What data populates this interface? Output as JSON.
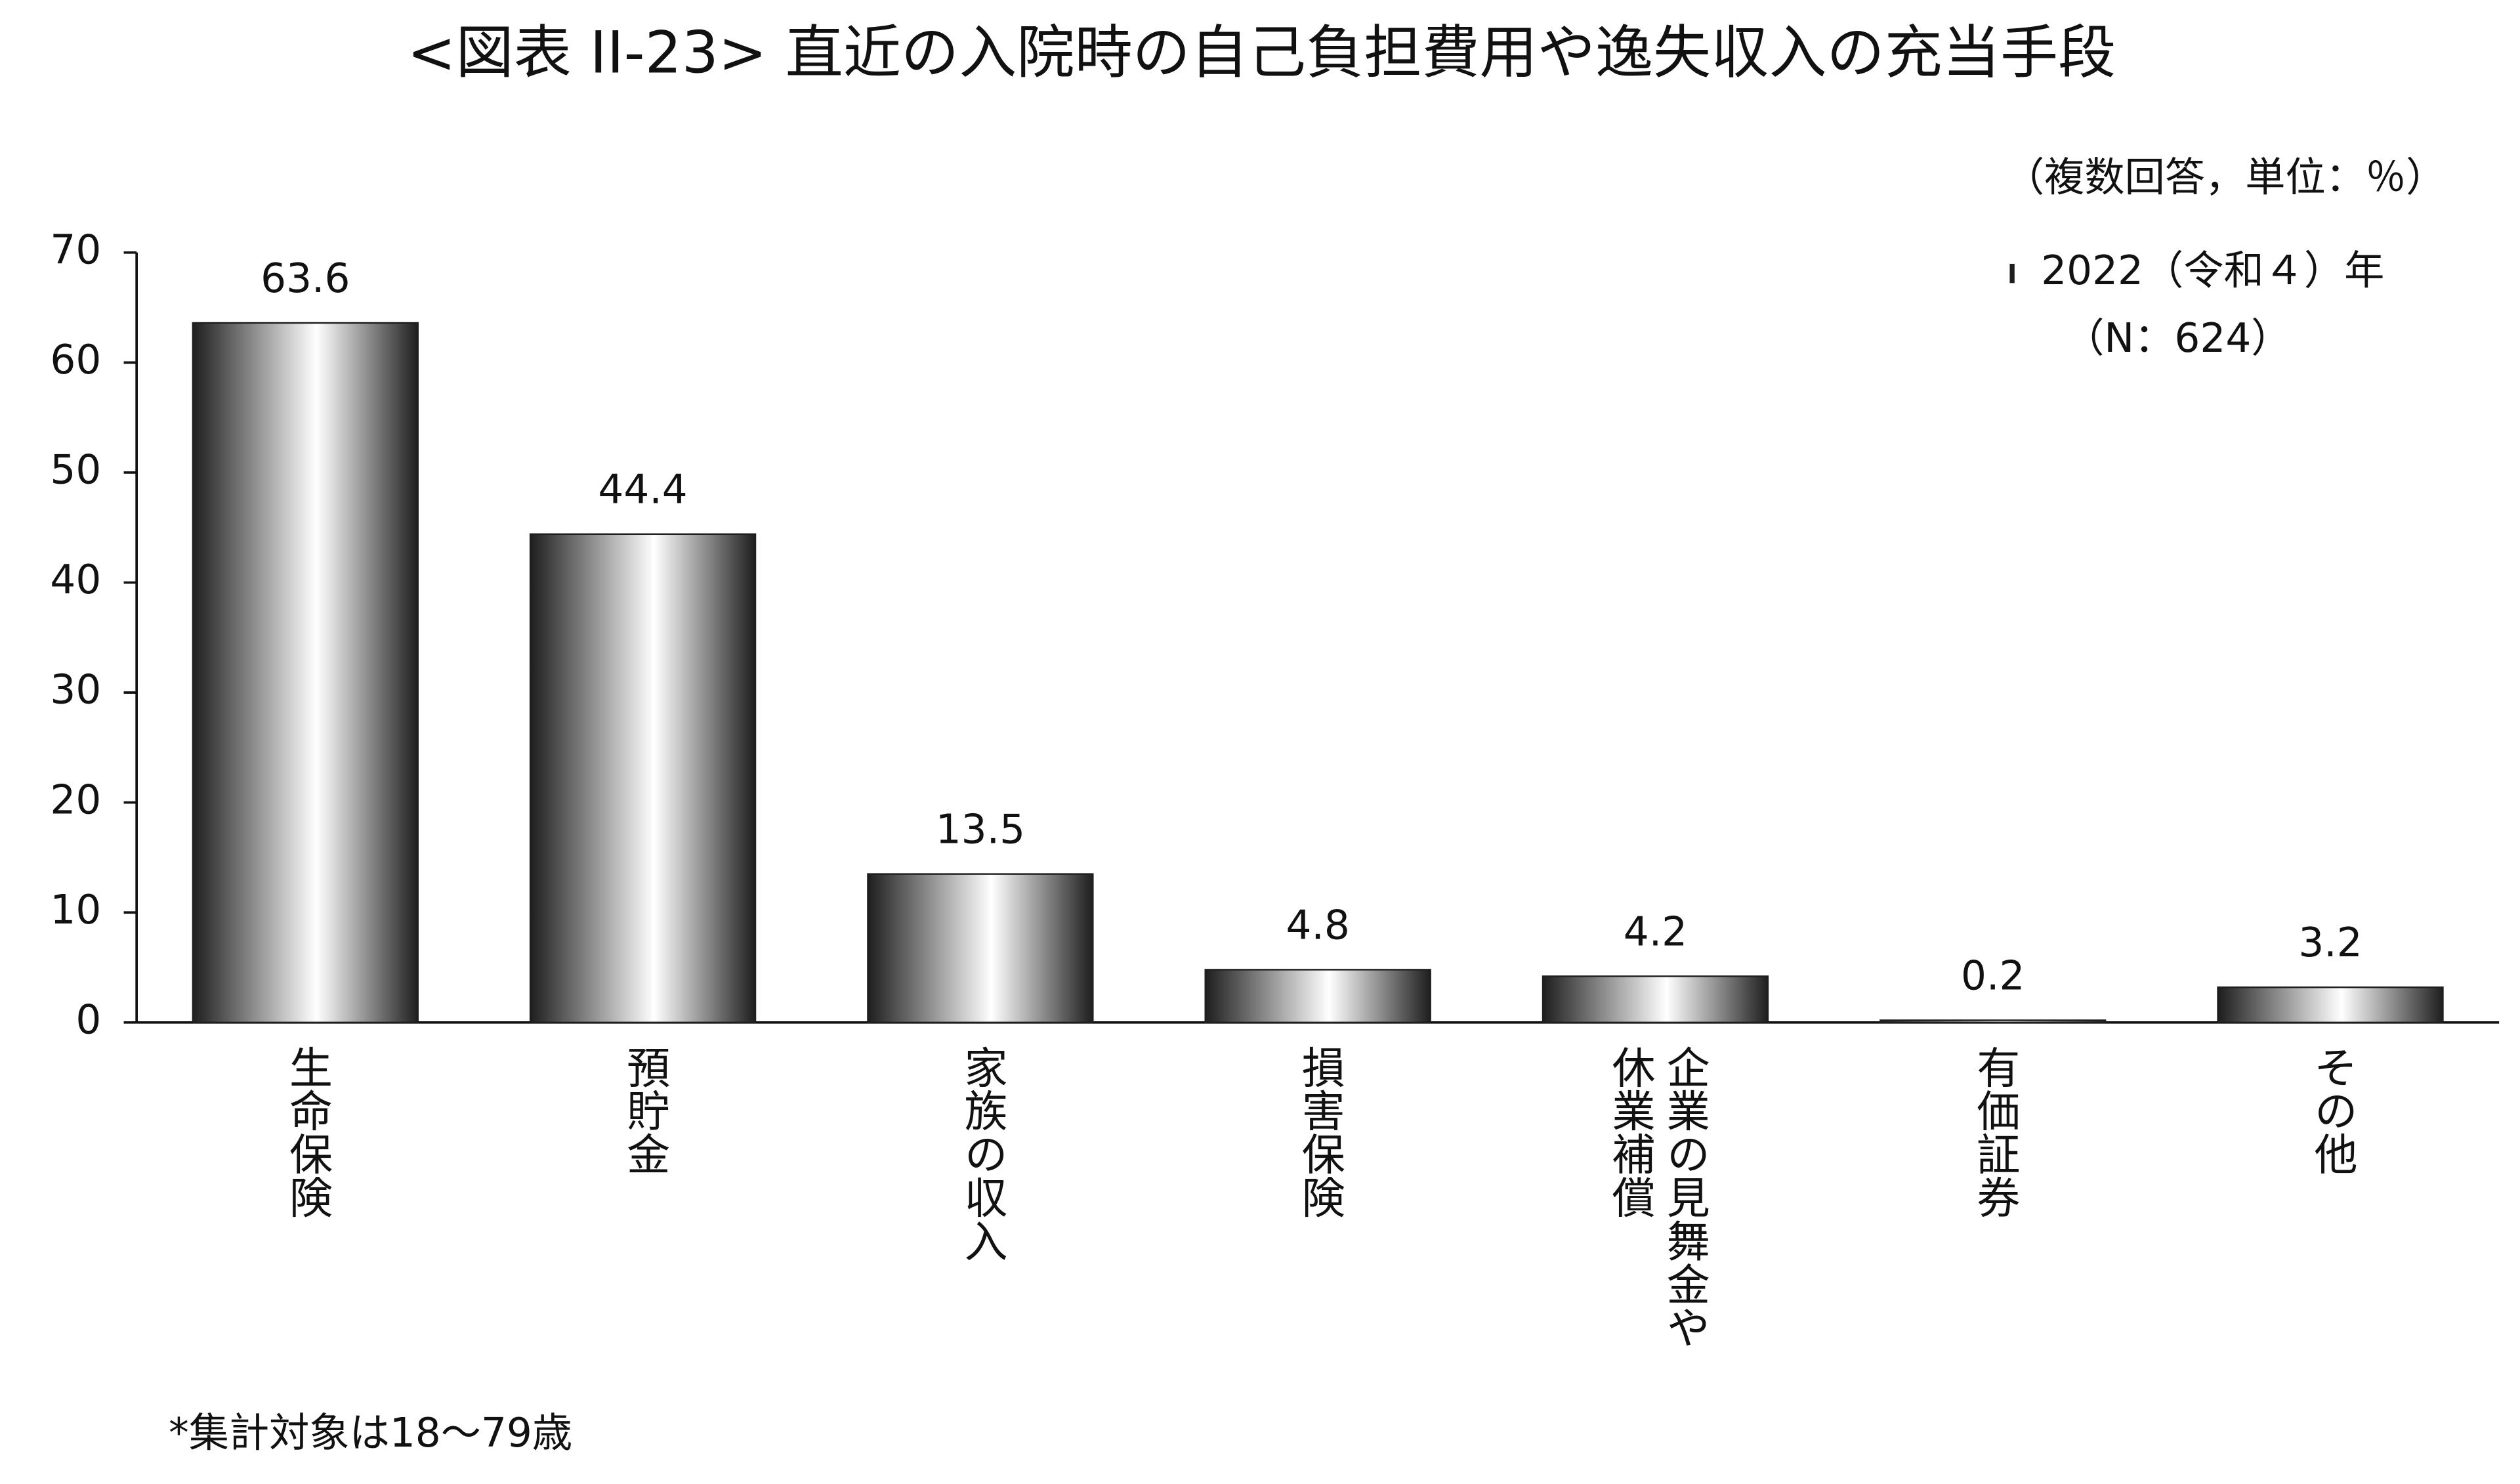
{
  "chart_data": {
    "type": "bar",
    "title": "<図表 II-23> 直近の入院時の自己負担費用や逸失収入の充当手段",
    "subtitle": "（複数回答，単位：％）",
    "categories": [
      "生命保険",
      "預貯金",
      "家族の収入",
      "損害保険",
      "企業の見舞金や\n休業補償",
      "有価証券",
      "その他"
    ],
    "series": [
      {
        "name": "2022（令和４）年",
        "color": "#1e1e1e",
        "values": [
          63.6,
          44.4,
          13.5,
          4.8,
          4.2,
          0.2,
          3.2
        ]
      }
    ],
    "legend_note": "（N：624）",
    "footnote": "*集計対象は18～79歳",
    "ylim": [
      0,
      70
    ],
    "yticks": [
      0,
      10,
      20,
      30,
      40,
      50,
      60,
      70
    ],
    "grid": false,
    "legend": "upper right"
  }
}
